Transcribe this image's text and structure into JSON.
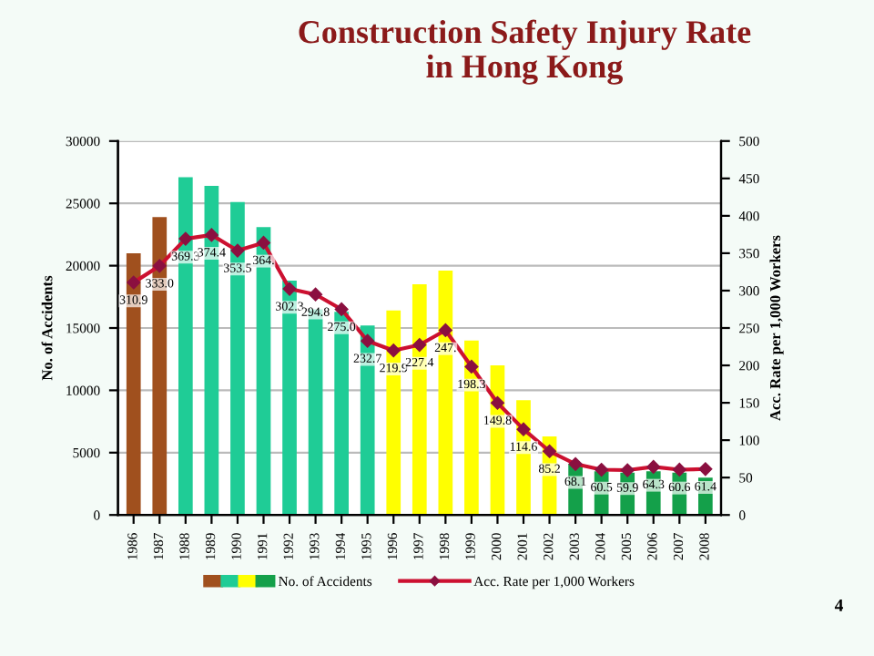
{
  "chart_data": {
    "type": "bar",
    "title": "Construction Safety Injury Rate\nin Hong Kong",
    "categories": [
      "1986",
      "1987",
      "1988",
      "1989",
      "1990",
      "1991",
      "1992",
      "1993",
      "1994",
      "1995",
      "1996",
      "1997",
      "1998",
      "1999",
      "2000",
      "2001",
      "2002",
      "2003",
      "2004",
      "2005",
      "2006",
      "2007",
      "2008"
    ],
    "series": [
      {
        "name": "No. of Accidents",
        "colors": [
          "#a0501e",
          "#a0501e",
          "#1fcc96",
          "#1fcc96",
          "#1fcc96",
          "#1fcc96",
          "#1fcc96",
          "#1fcc96",
          "#1fcc96",
          "#1fcc96",
          "#ffff00",
          "#ffff00",
          "#ffff00",
          "#ffff00",
          "#ffff00",
          "#ffff00",
          "#ffff00",
          "#14a04a",
          "#14a04a",
          "#14a04a",
          "#14a04a",
          "#14a04a",
          "#14a04a"
        ],
        "values": [
          21000,
          23900,
          27100,
          26400,
          25100,
          23100,
          18800,
          16500,
          16300,
          15200,
          16400,
          18500,
          19600,
          14000,
          12000,
          9200,
          6300,
          4100,
          3500,
          3400,
          3500,
          3400,
          3000
        ]
      },
      {
        "name": "Acc. Rate per 1,000 Workers",
        "type": "line",
        "axis": "y2",
        "color": "#cc1030",
        "marker": "diamond",
        "value_labels": [
          "310.9",
          "333.0",
          "369.3",
          "374.4",
          "353.5",
          "364.",
          "302.3",
          "294.8",
          "275.0",
          "232.7",
          "219.9",
          "227.4",
          "247.",
          "198.3",
          "149.8",
          "114.6",
          "85.2",
          "68.1",
          "60.5",
          "59.9",
          "64.3",
          "60.6",
          "61.4"
        ],
        "values": [
          310.9,
          333.0,
          369.3,
          374.4,
          353.5,
          364.0,
          302.3,
          294.8,
          275.0,
          232.7,
          219.9,
          227.4,
          247.0,
          198.3,
          149.8,
          114.6,
          85.2,
          68.1,
          60.5,
          59.9,
          64.3,
          60.6,
          61.4
        ]
      }
    ],
    "ylabel": "No. of Accidents",
    "y2label": "Acc. Rate per 1,000 Workers",
    "ylim": [
      0,
      30000
    ],
    "yticks": [
      0,
      5000,
      10000,
      15000,
      20000,
      25000,
      30000
    ],
    "y2lim": [
      0,
      500
    ],
    "y2ticks": [
      0,
      50,
      100,
      150,
      200,
      250,
      300,
      350,
      400,
      450,
      500
    ],
    "grid": "y",
    "legend": "bottom",
    "annotations": [
      "4"
    ]
  }
}
